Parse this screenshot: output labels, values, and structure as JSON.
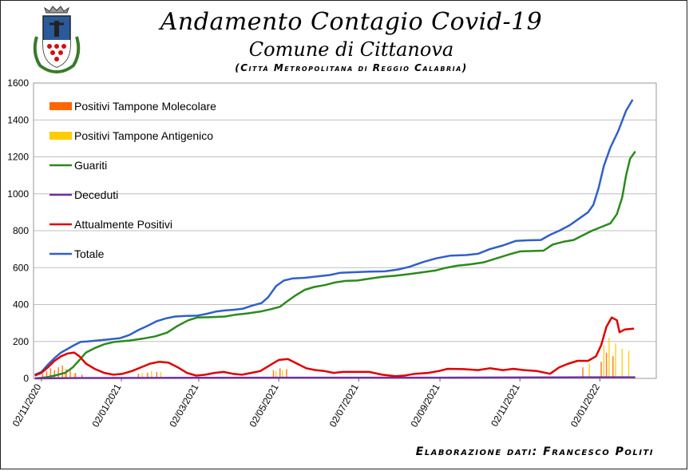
{
  "header": {
    "title": "Andamento Contagio Covid-19",
    "subtitle": "Comune di Cittanova",
    "subtitle2": "(Città Metropolitana di Reggio Calabria)"
  },
  "footer": {
    "credit": "Elaborazione dati: Francesco Politi"
  },
  "colors": {
    "molecolare": "#ff6600",
    "antigenico": "#ffcc00",
    "guariti": "#2a8a1c",
    "deceduti": "#7030a0",
    "attualmente": "#e00000",
    "totale": "#3060c8",
    "grid": "#bfbfbf"
  },
  "chart_data": {
    "type": "line",
    "ylim": [
      0,
      1600
    ],
    "yticks": [
      0,
      200,
      400,
      600,
      800,
      1000,
      1200,
      1400,
      1600
    ],
    "xlim": [
      "2020-10-27",
      "2022-02-14"
    ],
    "xtick_labels": [
      "02/11/2020",
      "02/01/2021",
      "02/03/2021",
      "02/05/2021",
      "02/07/2021",
      "02/09/2021",
      "02/11/2021",
      "02/01/2022"
    ],
    "xtick_dates": [
      "2020-11-02",
      "2021-01-02",
      "2021-03-02",
      "2021-05-02",
      "2021-07-02",
      "2021-09-02",
      "2021-11-02",
      "2022-01-02"
    ],
    "legend": [
      "Positivi Tampone Molecolare",
      "Positivi Tampone Antigenico",
      "Guariti",
      "Deceduti",
      "Attualmente Positivi",
      "Totale"
    ],
    "legend_position": "top-left",
    "grid": true,
    "series": [
      {
        "name": "Totale",
        "points": [
          [
            "2020-10-28",
            20
          ],
          [
            "2020-11-02",
            35
          ],
          [
            "2020-11-07",
            75
          ],
          [
            "2020-11-12",
            110
          ],
          [
            "2020-11-17",
            140
          ],
          [
            "2020-11-22",
            160
          ],
          [
            "2020-11-27",
            180
          ],
          [
            "2020-12-02",
            198
          ],
          [
            "2020-12-07",
            200
          ],
          [
            "2020-12-14",
            205
          ],
          [
            "2020-12-22",
            210
          ],
          [
            "2021-01-01",
            218
          ],
          [
            "2021-01-08",
            235
          ],
          [
            "2021-01-15",
            262
          ],
          [
            "2021-01-22",
            285
          ],
          [
            "2021-01-29",
            310
          ],
          [
            "2021-02-05",
            325
          ],
          [
            "2021-02-12",
            335
          ],
          [
            "2021-02-20",
            338
          ],
          [
            "2021-03-01",
            340
          ],
          [
            "2021-03-08",
            350
          ],
          [
            "2021-03-15",
            362
          ],
          [
            "2021-03-22",
            368
          ],
          [
            "2021-03-29",
            372
          ],
          [
            "2021-04-05",
            378
          ],
          [
            "2021-04-12",
            395
          ],
          [
            "2021-04-19",
            408
          ],
          [
            "2021-04-24",
            440
          ],
          [
            "2021-04-30",
            500
          ],
          [
            "2021-05-06",
            530
          ],
          [
            "2021-05-13",
            542
          ],
          [
            "2021-05-22",
            545
          ],
          [
            "2021-06-01",
            553
          ],
          [
            "2021-06-10",
            560
          ],
          [
            "2021-06-18",
            572
          ],
          [
            "2021-06-28",
            575
          ],
          [
            "2021-07-10",
            578
          ],
          [
            "2021-07-22",
            580
          ],
          [
            "2021-08-01",
            590
          ],
          [
            "2021-08-10",
            605
          ],
          [
            "2021-08-20",
            630
          ],
          [
            "2021-08-30",
            650
          ],
          [
            "2021-09-10",
            665
          ],
          [
            "2021-09-22",
            668
          ],
          [
            "2021-10-01",
            675
          ],
          [
            "2021-10-10",
            700
          ],
          [
            "2021-10-20",
            720
          ],
          [
            "2021-10-30",
            745
          ],
          [
            "2021-11-08",
            748
          ],
          [
            "2021-11-18",
            750
          ],
          [
            "2021-11-25",
            778
          ],
          [
            "2021-12-02",
            800
          ],
          [
            "2021-12-10",
            830
          ],
          [
            "2021-12-18",
            870
          ],
          [
            "2021-12-24",
            900
          ],
          [
            "2021-12-28",
            940
          ],
          [
            "2022-01-01",
            1030
          ],
          [
            "2022-01-05",
            1150
          ],
          [
            "2022-01-10",
            1250
          ],
          [
            "2022-01-16",
            1340
          ],
          [
            "2022-01-22",
            1450
          ],
          [
            "2022-01-27",
            1510
          ]
        ]
      },
      {
        "name": "Guariti",
        "points": [
          [
            "2020-10-28",
            0
          ],
          [
            "2020-11-05",
            5
          ],
          [
            "2020-11-12",
            15
          ],
          [
            "2020-11-20",
            30
          ],
          [
            "2020-11-26",
            60
          ],
          [
            "2020-12-01",
            100
          ],
          [
            "2020-12-06",
            140
          ],
          [
            "2020-12-13",
            165
          ],
          [
            "2020-12-20",
            185
          ],
          [
            "2020-12-28",
            198
          ],
          [
            "2021-01-08",
            205
          ],
          [
            "2021-01-18",
            215
          ],
          [
            "2021-01-28",
            228
          ],
          [
            "2021-02-06",
            248
          ],
          [
            "2021-02-14",
            285
          ],
          [
            "2021-02-22",
            315
          ],
          [
            "2021-03-01",
            330
          ],
          [
            "2021-03-12",
            332
          ],
          [
            "2021-03-22",
            335
          ],
          [
            "2021-03-30",
            345
          ],
          [
            "2021-04-08",
            352
          ],
          [
            "2021-04-18",
            362
          ],
          [
            "2021-04-26",
            375
          ],
          [
            "2021-05-03",
            388
          ],
          [
            "2021-05-08",
            415
          ],
          [
            "2021-05-15",
            450
          ],
          [
            "2021-05-22",
            480
          ],
          [
            "2021-05-29",
            495
          ],
          [
            "2021-06-06",
            505
          ],
          [
            "2021-06-14",
            520
          ],
          [
            "2021-06-22",
            528
          ],
          [
            "2021-07-01",
            530
          ],
          [
            "2021-07-10",
            540
          ],
          [
            "2021-07-20",
            550
          ],
          [
            "2021-07-30",
            556
          ],
          [
            "2021-08-10",
            565
          ],
          [
            "2021-08-20",
            575
          ],
          [
            "2021-08-30",
            585
          ],
          [
            "2021-09-06",
            598
          ],
          [
            "2021-09-15",
            610
          ],
          [
            "2021-09-25",
            618
          ],
          [
            "2021-10-05",
            628
          ],
          [
            "2021-10-15",
            650
          ],
          [
            "2021-10-25",
            672
          ],
          [
            "2021-11-02",
            688
          ],
          [
            "2021-11-12",
            690
          ],
          [
            "2021-11-20",
            692
          ],
          [
            "2021-11-27",
            725
          ],
          [
            "2021-12-05",
            740
          ],
          [
            "2021-12-13",
            750
          ],
          [
            "2021-12-20",
            775
          ],
          [
            "2021-12-27",
            800
          ],
          [
            "2022-01-03",
            820
          ],
          [
            "2022-01-10",
            840
          ],
          [
            "2022-01-15",
            890
          ],
          [
            "2022-01-19",
            980
          ],
          [
            "2022-01-22",
            1100
          ],
          [
            "2022-01-25",
            1190
          ],
          [
            "2022-01-29",
            1230
          ]
        ]
      },
      {
        "name": "Deceduti",
        "points": [
          [
            "2020-10-28",
            0
          ],
          [
            "2020-12-01",
            2
          ],
          [
            "2021-03-01",
            3
          ],
          [
            "2021-06-01",
            4
          ],
          [
            "2021-09-01",
            4
          ],
          [
            "2021-12-01",
            5
          ],
          [
            "2022-01-29",
            6
          ]
        ]
      },
      {
        "name": "Attualmente Positivi",
        "points": [
          [
            "2020-10-28",
            15
          ],
          [
            "2020-11-02",
            30
          ],
          [
            "2020-11-07",
            60
          ],
          [
            "2020-11-12",
            95
          ],
          [
            "2020-11-17",
            120
          ],
          [
            "2020-11-22",
            135
          ],
          [
            "2020-11-27",
            140
          ],
          [
            "2020-12-01",
            120
          ],
          [
            "2020-12-06",
            80
          ],
          [
            "2020-12-13",
            50
          ],
          [
            "2020-12-20",
            30
          ],
          [
            "2020-12-27",
            20
          ],
          [
            "2021-01-03",
            25
          ],
          [
            "2021-01-10",
            40
          ],
          [
            "2021-01-17",
            60
          ],
          [
            "2021-01-24",
            80
          ],
          [
            "2021-01-31",
            90
          ],
          [
            "2021-02-07",
            85
          ],
          [
            "2021-02-14",
            60
          ],
          [
            "2021-02-21",
            30
          ],
          [
            "2021-02-28",
            15
          ],
          [
            "2021-03-07",
            20
          ],
          [
            "2021-03-14",
            30
          ],
          [
            "2021-03-21",
            35
          ],
          [
            "2021-03-28",
            25
          ],
          [
            "2021-04-04",
            20
          ],
          [
            "2021-04-11",
            30
          ],
          [
            "2021-04-18",
            40
          ],
          [
            "2021-04-25",
            70
          ],
          [
            "2021-05-02",
            100
          ],
          [
            "2021-05-09",
            105
          ],
          [
            "2021-05-16",
            80
          ],
          [
            "2021-05-23",
            55
          ],
          [
            "2021-05-30",
            45
          ],
          [
            "2021-06-06",
            40
          ],
          [
            "2021-06-13",
            30
          ],
          [
            "2021-06-20",
            35
          ],
          [
            "2021-06-27",
            35
          ],
          [
            "2021-07-10",
            35
          ],
          [
            "2021-07-20",
            20
          ],
          [
            "2021-07-30",
            12
          ],
          [
            "2021-08-06",
            15
          ],
          [
            "2021-08-14",
            25
          ],
          [
            "2021-08-24",
            30
          ],
          [
            "2021-09-01",
            40
          ],
          [
            "2021-09-08",
            52
          ],
          [
            "2021-09-20",
            50
          ],
          [
            "2021-10-01",
            45
          ],
          [
            "2021-10-10",
            55
          ],
          [
            "2021-10-20",
            45
          ],
          [
            "2021-10-28",
            52
          ],
          [
            "2021-11-05",
            45
          ],
          [
            "2021-11-15",
            40
          ],
          [
            "2021-11-25",
            25
          ],
          [
            "2021-12-02",
            60
          ],
          [
            "2021-12-09",
            80
          ],
          [
            "2021-12-16",
            95
          ],
          [
            "2021-12-24",
            95
          ],
          [
            "2021-12-30",
            120
          ],
          [
            "2022-01-03",
            180
          ],
          [
            "2022-01-07",
            280
          ],
          [
            "2022-01-11",
            330
          ],
          [
            "2022-01-15",
            315
          ],
          [
            "2022-01-17",
            250
          ],
          [
            "2022-01-21",
            265
          ],
          [
            "2022-01-28",
            270
          ]
        ]
      }
    ],
    "bars": [
      {
        "name": "Positivi Tampone Molecolare",
        "points": [
          [
            "2020-11-03",
            25
          ],
          [
            "2020-11-06",
            40
          ],
          [
            "2020-11-09",
            55
          ],
          [
            "2020-11-12",
            45
          ],
          [
            "2020-11-15",
            60
          ],
          [
            "2020-11-18",
            70
          ],
          [
            "2020-11-21",
            50
          ],
          [
            "2020-11-24",
            45
          ],
          [
            "2020-11-28",
            30
          ],
          [
            "2020-12-03",
            20
          ],
          [
            "2021-01-15",
            25
          ],
          [
            "2021-01-22",
            30
          ],
          [
            "2021-01-29",
            35
          ],
          [
            "2021-04-28",
            45
          ],
          [
            "2021-05-03",
            55
          ],
          [
            "2021-05-08",
            50
          ],
          [
            "2021-12-20",
            60
          ],
          [
            "2022-01-03",
            90
          ],
          [
            "2022-01-07",
            140
          ],
          [
            "2022-01-12",
            120
          ]
        ]
      },
      {
        "name": "Positivi Tampone Antigenico",
        "points": [
          [
            "2020-11-20",
            30
          ],
          [
            "2020-11-27",
            25
          ],
          [
            "2021-01-18",
            30
          ],
          [
            "2021-01-25",
            40
          ],
          [
            "2021-02-01",
            35
          ],
          [
            "2021-04-30",
            40
          ],
          [
            "2021-05-05",
            45
          ],
          [
            "2021-12-25",
            80
          ],
          [
            "2022-01-05",
            180
          ],
          [
            "2022-01-09",
            220
          ],
          [
            "2022-01-14",
            190
          ],
          [
            "2022-01-19",
            160
          ],
          [
            "2022-01-24",
            150
          ]
        ]
      }
    ]
  }
}
